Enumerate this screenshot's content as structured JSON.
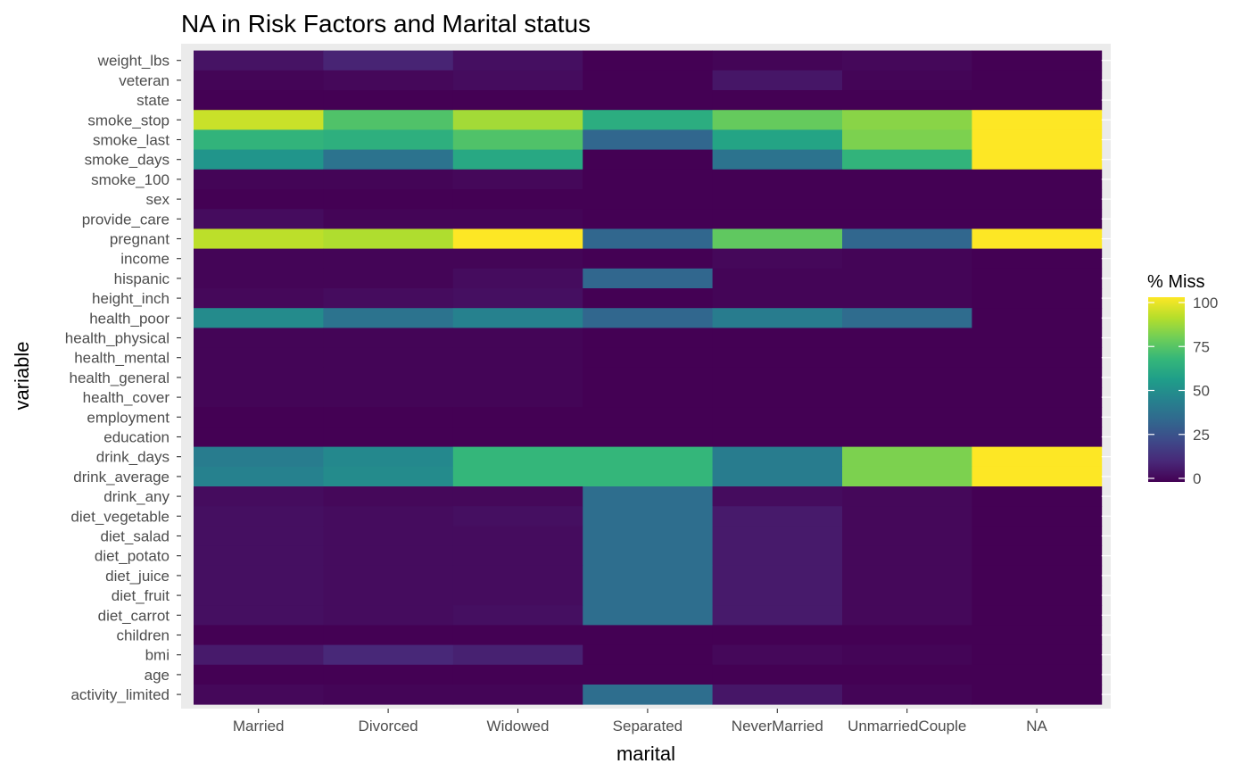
{
  "chart_data": {
    "type": "heatmap",
    "title": "NA in Risk Factors and Marital status",
    "xlabel": "marital",
    "ylabel": "variable",
    "legend": {
      "title": "% Miss",
      "position": "right",
      "ticks": [
        "0",
        "25",
        "50",
        "75",
        "100"
      ],
      "range": [
        0,
        100
      ],
      "colormap": "viridis"
    },
    "x_categories": [
      "Married",
      "Divorced",
      "Widowed",
      "Separated",
      "NeverMarried",
      "UnmarriedCouple",
      "NA"
    ],
    "y_categories": [
      "weight_lbs",
      "veteran",
      "state",
      "smoke_stop",
      "smoke_last",
      "smoke_days",
      "smoke_100",
      "sex",
      "provide_care",
      "pregnant",
      "income",
      "hispanic",
      "height_inch",
      "health_poor",
      "health_physical",
      "health_mental",
      "health_general",
      "health_cover",
      "employment",
      "education",
      "drink_days",
      "drink_average",
      "drink_any",
      "diet_vegetable",
      "diet_salad",
      "diet_potato",
      "diet_juice",
      "diet_fruit",
      "diet_carrot",
      "children",
      "bmi",
      "age",
      "activity_limited"
    ],
    "values": [
      [
        5,
        10,
        4,
        0,
        1,
        2,
        0
      ],
      [
        1,
        2,
        3,
        0,
        6,
        1,
        0
      ],
      [
        0,
        0,
        0,
        0,
        0,
        0,
        0
      ],
      [
        92,
        72,
        86,
        62,
        76,
        82,
        100
      ],
      [
        65,
        63,
        72,
        33,
        58,
        80,
        100
      ],
      [
        52,
        38,
        60,
        0,
        38,
        65,
        100
      ],
      [
        1,
        1,
        2,
        0,
        0,
        0,
        0
      ],
      [
        0,
        0,
        0,
        0,
        0,
        0,
        0
      ],
      [
        3,
        1,
        1,
        0,
        0,
        0,
        0
      ],
      [
        90,
        88,
        100,
        33,
        75,
        33,
        100
      ],
      [
        1,
        1,
        1,
        0,
        2,
        1,
        0
      ],
      [
        1,
        1,
        3,
        33,
        1,
        1,
        0
      ],
      [
        2,
        3,
        4,
        0,
        1,
        1,
        0
      ],
      [
        48,
        38,
        44,
        33,
        42,
        35,
        0
      ],
      [
        1,
        1,
        1,
        0,
        0,
        0,
        0
      ],
      [
        1,
        1,
        1,
        0,
        0,
        0,
        0
      ],
      [
        1,
        1,
        1,
        0,
        0,
        0,
        0
      ],
      [
        1,
        1,
        1,
        0,
        0,
        0,
        0
      ],
      [
        0,
        0,
        0,
        0,
        0,
        0,
        0
      ],
      [
        0,
        0,
        0,
        0,
        0,
        0,
        0
      ],
      [
        42,
        47,
        66,
        66,
        42,
        80,
        100
      ],
      [
        44,
        48,
        66,
        66,
        42,
        80,
        100
      ],
      [
        3,
        2,
        2,
        36,
        3,
        2,
        0
      ],
      [
        4,
        3,
        4,
        36,
        7,
        2,
        0
      ],
      [
        4,
        3,
        3,
        36,
        7,
        2,
        0
      ],
      [
        4,
        3,
        3,
        36,
        7,
        2,
        0
      ],
      [
        4,
        3,
        3,
        36,
        7,
        2,
        0
      ],
      [
        4,
        3,
        3,
        36,
        7,
        2,
        0
      ],
      [
        4,
        3,
        4,
        36,
        7,
        2,
        0
      ],
      [
        0,
        0,
        0,
        0,
        0,
        0,
        0
      ],
      [
        7,
        11,
        9,
        0,
        2,
        1,
        0
      ],
      [
        0,
        0,
        0,
        0,
        0,
        0,
        0
      ],
      [
        2,
        1,
        1,
        36,
        6,
        1,
        0
      ]
    ]
  }
}
